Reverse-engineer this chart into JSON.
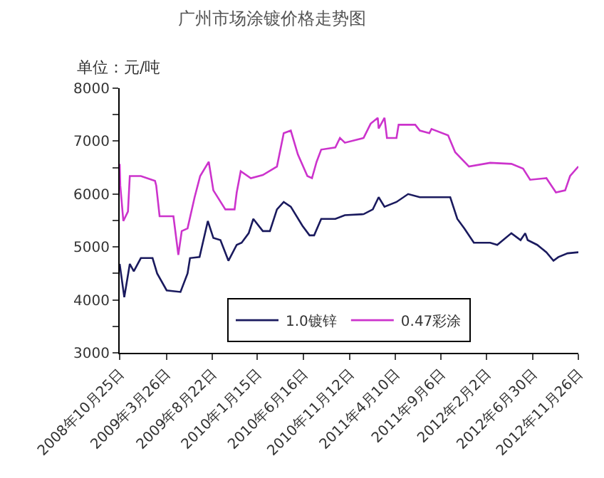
{
  "chart_data": {
    "type": "line",
    "title": "广州市场涂镀价格走势图",
    "ylabel": "单位：元/吨",
    "ylim": [
      3000,
      8000
    ],
    "yticks": [
      3000,
      {
        "value": 3500,
        "label": null
      },
      4000,
      {
        "value": 4500,
        "label": null
      },
      5000,
      {
        "value": 5500,
        "label": null
      },
      6000,
      {
        "value": 6500,
        "label": null
      },
      7000,
      {
        "value": 7500,
        "label": null
      },
      8000
    ],
    "xlim": [
      "2008-10-25",
      "2012-11-26"
    ],
    "xticks": [
      {
        "value": "2008-10-25",
        "label": "2008年10月25日"
      },
      {
        "value": "2009-03-26",
        "label": "2009年3月26日"
      },
      {
        "value": "2009-08-22",
        "label": "2009年8月22日"
      },
      {
        "value": "2010-01-15",
        "label": "2010年1月15日"
      },
      {
        "value": "2010-06-16",
        "label": "2010年6月16日"
      },
      {
        "value": "2010-11-12",
        "label": "2010年11月12日"
      },
      {
        "value": "2011-04-10",
        "label": "2011年4月10日"
      },
      {
        "value": "2011-09-06",
        "label": "2011年9月6日"
      },
      {
        "value": "2012-02-02",
        "label": "2012年2月2日"
      },
      {
        "value": "2012-06-30",
        "label": "2012年6月30日"
      },
      {
        "value": "2012-11-26",
        "label": "2012年11月26日"
      }
    ],
    "legend": "bottom",
    "marker": "none",
    "line_style": "solid",
    "series": [
      {
        "name": "1.0镀锌",
        "color": "#1a1a5e",
        "x": [
          "2008-10-25",
          "2008-11-09",
          "2008-11-27",
          "2008-12-10",
          "2009-01-02",
          "2009-02-09",
          "2009-02-24",
          "2009-03-27",
          "2009-05-11",
          "2009-06-03",
          "2009-06-11",
          "2009-07-12",
          "2009-08-08",
          "2009-08-26",
          "2009-09-18",
          "2009-10-14",
          "2009-11-10",
          "2009-11-26",
          "2009-12-19",
          "2010-01-03",
          "2010-02-03",
          "2010-02-26",
          "2010-03-21",
          "2010-04-12",
          "2010-05-05",
          "2010-06-12",
          "2010-07-05",
          "2010-07-20",
          "2010-08-12",
          "2010-09-27",
          "2010-10-28",
          "2010-12-28",
          "2011-01-27",
          "2011-02-15",
          "2011-03-06",
          "2011-04-14",
          "2011-05-22",
          "2011-06-29",
          "2011-10-06",
          "2011-10-29",
          "2011-11-21",
          "2011-12-22",
          "2012-02-13",
          "2012-03-07",
          "2012-04-22",
          "2012-05-22",
          "2012-06-06",
          "2012-06-14",
          "2012-07-15",
          "2012-08-14",
          "2012-09-06",
          "2012-09-22",
          "2012-10-22",
          "2012-11-26"
        ],
        "values": [
          4680,
          4050,
          4680,
          4540,
          4790,
          4790,
          4500,
          4180,
          4150,
          4500,
          4790,
          4810,
          5490,
          5170,
          5130,
          4740,
          5040,
          5080,
          5260,
          5530,
          5300,
          5300,
          5710,
          5850,
          5760,
          5400,
          5220,
          5220,
          5530,
          5530,
          5600,
          5620,
          5710,
          5940,
          5760,
          5850,
          6000,
          5940,
          5940,
          5530,
          5350,
          5080,
          5080,
          5040,
          5260,
          5130,
          5260,
          5130,
          5040,
          4900,
          4740,
          4810,
          4880,
          4900
        ]
      },
      {
        "name": "0.47彩涂",
        "color": "#cc33cc",
        "x": [
          "2008-10-25",
          "2008-10-27",
          "2008-11-06",
          "2008-11-21",
          "2008-11-27",
          "2009-01-02",
          "2009-02-17",
          "2009-02-21",
          "2009-03-04",
          "2009-04-18",
          "2009-05-04",
          "2009-05-15",
          "2009-06-03",
          "2009-06-26",
          "2009-07-14",
          "2009-08-11",
          "2009-08-26",
          "2009-10-04",
          "2009-11-03",
          "2009-11-10",
          "2009-11-23",
          "2009-12-26",
          "2010-02-03",
          "2010-03-21",
          "2010-04-12",
          "2010-05-05",
          "2010-05-28",
          "2010-06-28",
          "2010-07-13",
          "2010-07-28",
          "2010-08-12",
          "2010-09-27",
          "2010-10-12",
          "2010-10-28",
          "2010-12-28",
          "2011-01-20",
          "2011-02-12",
          "2011-02-15",
          "2011-03-06",
          "2011-03-14",
          "2011-04-14",
          "2011-04-21",
          "2011-06-14",
          "2011-06-29",
          "2011-07-30",
          "2011-08-06",
          "2011-09-29",
          "2011-10-22",
          "2011-12-06",
          "2012-02-13",
          "2012-04-22",
          "2012-05-30",
          "2012-06-22",
          "2012-08-14",
          "2012-09-14",
          "2012-10-14",
          "2012-10-30",
          "2012-11-26"
        ],
        "values": [
          6570,
          6160,
          5490,
          5670,
          6340,
          6340,
          6250,
          6160,
          5580,
          5580,
          4850,
          5300,
          5350,
          5940,
          6340,
          6610,
          6070,
          5710,
          5710,
          6030,
          6430,
          6300,
          6360,
          6520,
          7150,
          7200,
          6750,
          6340,
          6300,
          6610,
          6840,
          6880,
          7060,
          6970,
          7060,
          7330,
          7440,
          7240,
          7440,
          7060,
          7060,
          7310,
          7310,
          7200,
          7150,
          7230,
          7110,
          6790,
          6520,
          6590,
          6570,
          6480,
          6270,
          6300,
          6030,
          6070,
          6340,
          6520
        ]
      }
    ]
  }
}
